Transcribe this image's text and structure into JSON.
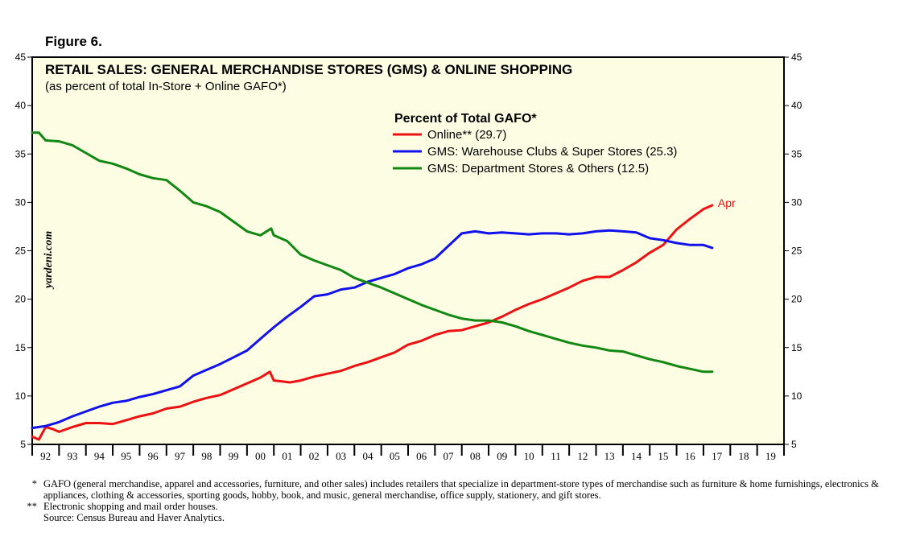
{
  "figure_label": "Figure 6.",
  "watermark": "yardeni.com",
  "footnotes": [
    {
      "mark": "*",
      "text": "GAFO (general merchandise, apparel and accessories, furniture, and other sales) includes retailers that specialize in department-store types of merchandise such as furniture & home furnishings, electronics & appliances, clothing & accessories, sporting goods, hobby, book, and music, general merchandise, office supply, stationery, and gift stores."
    },
    {
      "mark": "**",
      "text": "Electronic shopping and mail order houses."
    },
    {
      "mark": "",
      "text": "Source: Census Bureau and Haver Analytics."
    }
  ],
  "chart_data": {
    "type": "line",
    "title": "RETAIL SALES: GENERAL MERCHANDISE STORES (GMS) & ONLINE SHOPPING",
    "subtitle": "(as percent of total In-Store + Online GAFO*)",
    "legend_title": "Percent of Total GAFO*",
    "legend_position": "top-center",
    "xlabel": "",
    "ylabel": "",
    "ylim": [
      5,
      45
    ],
    "yticks": [
      5,
      10,
      15,
      20,
      25,
      30,
      35,
      40,
      45
    ],
    "xlim": [
      1992,
      2020
    ],
    "xtick_labels": [
      "92",
      "93",
      "94",
      "95",
      "96",
      "97",
      "98",
      "99",
      "00",
      "01",
      "02",
      "03",
      "04",
      "05",
      "06",
      "07",
      "08",
      "09",
      "10",
      "11",
      "12",
      "13",
      "14",
      "15",
      "16",
      "17",
      "18",
      "19"
    ],
    "background": "#fdfde4",
    "end_annotation": {
      "text": "Apr",
      "series": "Online** (29.7)"
    },
    "series": [
      {
        "name": "Online** (29.7)",
        "color": "#ee1111",
        "x": [
          1992.0,
          1992.25,
          1992.5,
          1992.75,
          1993.0,
          1993.5,
          1994.0,
          1994.5,
          1995.0,
          1995.5,
          1996.0,
          1996.5,
          1997.0,
          1997.5,
          1998.0,
          1998.5,
          1999.0,
          1999.5,
          2000.0,
          2000.5,
          2000.85,
          2001.0,
          2001.3,
          2001.6,
          2002.0,
          2002.5,
          2003.0,
          2003.5,
          2004.0,
          2004.5,
          2005.0,
          2005.5,
          2006.0,
          2006.5,
          2007.0,
          2007.5,
          2008.0,
          2008.5,
          2009.0,
          2009.5,
          2010.0,
          2010.5,
          2011.0,
          2011.5,
          2012.0,
          2012.5,
          2013.0,
          2013.5,
          2014.0,
          2014.5,
          2015.0,
          2015.5,
          2016.0,
          2016.5,
          2017.0,
          2017.33
        ],
        "values": [
          5.8,
          5.5,
          6.8,
          6.6,
          6.3,
          6.8,
          7.2,
          7.2,
          7.1,
          7.5,
          7.9,
          8.2,
          8.7,
          8.9,
          9.4,
          9.8,
          10.1,
          10.7,
          11.3,
          11.9,
          12.5,
          11.6,
          11.5,
          11.4,
          11.6,
          12.0,
          12.3,
          12.6,
          13.1,
          13.5,
          14.0,
          14.5,
          15.3,
          15.7,
          16.3,
          16.7,
          16.8,
          17.2,
          17.6,
          18.2,
          18.9,
          19.5,
          20.0,
          20.6,
          21.2,
          21.9,
          22.3,
          22.3,
          23.0,
          23.8,
          24.8,
          25.6,
          27.2,
          28.3,
          29.3,
          29.7
        ]
      },
      {
        "name": "GMS: Warehouse Clubs & Super Stores (25.3)",
        "color": "#1111ee",
        "x": [
          1992.0,
          1992.5,
          1993.0,
          1993.5,
          1994.0,
          1994.5,
          1995.0,
          1995.5,
          1996.0,
          1996.5,
          1997.0,
          1997.5,
          1998.0,
          1998.5,
          1999.0,
          1999.5,
          2000.0,
          2000.5,
          2001.0,
          2001.5,
          2002.0,
          2002.5,
          2003.0,
          2003.5,
          2004.0,
          2004.5,
          2005.0,
          2005.5,
          2006.0,
          2006.5,
          2007.0,
          2007.5,
          2008.0,
          2008.5,
          2009.0,
          2009.5,
          2010.0,
          2010.5,
          2011.0,
          2011.5,
          2012.0,
          2012.5,
          2013.0,
          2013.5,
          2014.0,
          2014.5,
          2015.0,
          2015.5,
          2016.0,
          2016.5,
          2017.0,
          2017.33
        ],
        "values": [
          6.7,
          6.9,
          7.3,
          7.9,
          8.4,
          8.9,
          9.3,
          9.5,
          9.9,
          10.2,
          10.6,
          11.0,
          12.1,
          12.7,
          13.3,
          14.0,
          14.7,
          15.9,
          17.1,
          18.2,
          19.2,
          20.3,
          20.5,
          21.0,
          21.2,
          21.8,
          22.2,
          22.6,
          23.2,
          23.6,
          24.2,
          25.5,
          26.8,
          27.0,
          26.8,
          26.9,
          26.8,
          26.7,
          26.8,
          26.8,
          26.7,
          26.8,
          27.0,
          27.1,
          27.0,
          26.9,
          26.3,
          26.1,
          25.8,
          25.6,
          25.6,
          25.3
        ]
      },
      {
        "name": "GMS: Department Stores & Others (12.5)",
        "color": "#118811",
        "x": [
          1992.0,
          1992.25,
          1992.5,
          1993.0,
          1993.5,
          1994.0,
          1994.5,
          1995.0,
          1995.5,
          1996.0,
          1996.5,
          1997.0,
          1997.5,
          1998.0,
          1998.5,
          1999.0,
          1999.5,
          2000.0,
          2000.5,
          2000.9,
          2001.0,
          2001.5,
          2002.0,
          2002.5,
          2003.0,
          2003.5,
          2004.0,
          2004.5,
          2005.0,
          2005.5,
          2006.0,
          2006.5,
          2007.0,
          2007.5,
          2008.0,
          2008.5,
          2009.0,
          2009.5,
          2010.0,
          2010.5,
          2011.0,
          2011.5,
          2012.0,
          2012.5,
          2013.0,
          2013.5,
          2014.0,
          2014.5,
          2015.0,
          2015.5,
          2016.0,
          2016.5,
          2017.0,
          2017.33
        ],
        "values": [
          37.2,
          37.2,
          36.4,
          36.3,
          35.9,
          35.1,
          34.3,
          34.0,
          33.5,
          32.9,
          32.5,
          32.3,
          31.2,
          30.0,
          29.6,
          29.0,
          28.0,
          27.0,
          26.6,
          27.3,
          26.6,
          26.0,
          24.6,
          24.0,
          23.5,
          23.0,
          22.2,
          21.7,
          21.2,
          20.6,
          20.0,
          19.4,
          18.9,
          18.4,
          18.0,
          17.8,
          17.8,
          17.6,
          17.2,
          16.7,
          16.3,
          15.9,
          15.5,
          15.2,
          15.0,
          14.7,
          14.6,
          14.2,
          13.8,
          13.5,
          13.1,
          12.8,
          12.5,
          12.5
        ]
      }
    ]
  }
}
